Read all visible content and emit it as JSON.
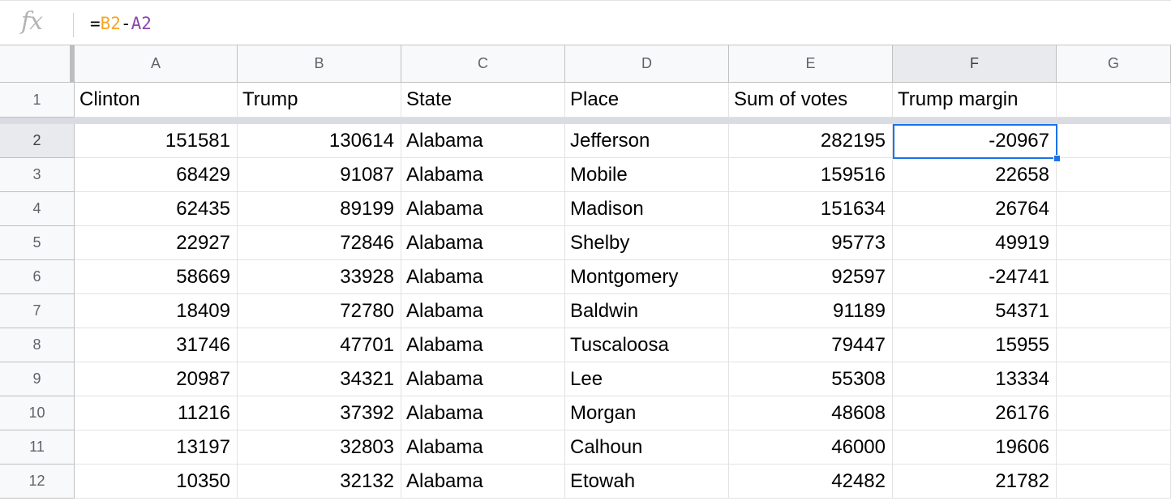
{
  "formula_bar": {
    "fx_label": "fx",
    "formula_parts": [
      {
        "text": "=",
        "color": "#000000"
      },
      {
        "text": "B2",
        "color": "#f5a623"
      },
      {
        "text": "-",
        "color": "#000000"
      },
      {
        "text": "A2",
        "color": "#8e44ad"
      }
    ]
  },
  "columns": [
    "A",
    "B",
    "C",
    "D",
    "E",
    "F",
    "G"
  ],
  "active_column": "F",
  "active_row": 2,
  "header_row": [
    "Clinton",
    "Trump",
    "State",
    "Place",
    "Sum of votes",
    "Trump margin",
    ""
  ],
  "rows": [
    {
      "n": "2",
      "cells": [
        "151581",
        "130614",
        "Alabama",
        "Jefferson",
        "282195",
        "-20967",
        ""
      ]
    },
    {
      "n": "3",
      "cells": [
        "68429",
        "91087",
        "Alabama",
        "Mobile",
        "159516",
        "22658",
        ""
      ]
    },
    {
      "n": "4",
      "cells": [
        "62435",
        "89199",
        "Alabama",
        "Madison",
        "151634",
        "26764",
        ""
      ]
    },
    {
      "n": "5",
      "cells": [
        "22927",
        "72846",
        "Alabama",
        "Shelby",
        "95773",
        "49919",
        ""
      ]
    },
    {
      "n": "6",
      "cells": [
        "58669",
        "33928",
        "Alabama",
        "Montgomery",
        "92597",
        "-24741",
        ""
      ]
    },
    {
      "n": "7",
      "cells": [
        "18409",
        "72780",
        "Alabama",
        "Baldwin",
        "91189",
        "54371",
        ""
      ]
    },
    {
      "n": "8",
      "cells": [
        "31746",
        "47701",
        "Alabama",
        "Tuscaloosa",
        "79447",
        "15955",
        ""
      ]
    },
    {
      "n": "9",
      "cells": [
        "20987",
        "34321",
        "Alabama",
        "Lee",
        "55308",
        "13334",
        ""
      ]
    },
    {
      "n": "10",
      "cells": [
        "11216",
        "37392",
        "Alabama",
        "Morgan",
        "48608",
        "26176",
        ""
      ]
    },
    {
      "n": "11",
      "cells": [
        "13197",
        "32803",
        "Alabama",
        "Calhoun",
        "46000",
        "19606",
        ""
      ]
    },
    {
      "n": "12",
      "cells": [
        "10350",
        "32132",
        "Alabama",
        "Etowah",
        "42482",
        "21782",
        ""
      ]
    }
  ],
  "header_row_number": "1"
}
